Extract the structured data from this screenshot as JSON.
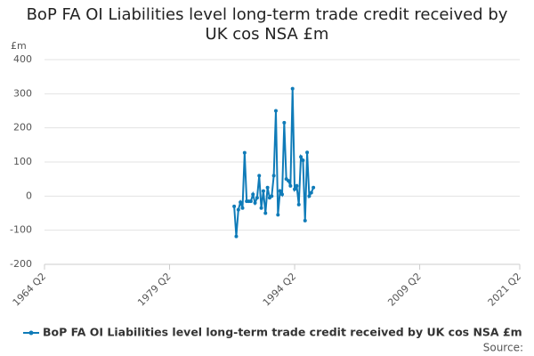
{
  "chart_data": {
    "type": "line",
    "title": "BoP FA OI Liabilities level long-term trade credit received by UK cos NSA £m",
    "y_label": "£m",
    "source": "Source:",
    "x": [
      "1987 Q1",
      "1987 Q2",
      "1987 Q3",
      "1987 Q4",
      "1988 Q1",
      "1988 Q2",
      "1988 Q3",
      "1988 Q4",
      "1989 Q1",
      "1989 Q2",
      "1989 Q3",
      "1989 Q4",
      "1990 Q1",
      "1990 Q2",
      "1990 Q3",
      "1990 Q4",
      "1991 Q1",
      "1991 Q2",
      "1991 Q3",
      "1991 Q4",
      "1992 Q1",
      "1992 Q2",
      "1992 Q3",
      "1992 Q4",
      "1993 Q1",
      "1993 Q2",
      "1993 Q3",
      "1993 Q4",
      "1994 Q1",
      "1994 Q2",
      "1994 Q3",
      "1994 Q4",
      "1995 Q1",
      "1995 Q2",
      "1995 Q3",
      "1995 Q4",
      "1996 Q1",
      "1996 Q2",
      "1996 Q3"
    ],
    "series": [
      {
        "name": "BoP FA OI Liabilities level long-term trade credit received by UK cos NSA £m",
        "color": "#0f7bb8",
        "values": [
          -30,
          -118,
          -40,
          -18,
          -35,
          127,
          -15,
          -15,
          -15,
          5,
          -20,
          -5,
          60,
          -35,
          15,
          -50,
          25,
          -5,
          0,
          60,
          250,
          -55,
          15,
          5,
          215,
          50,
          45,
          30,
          315,
          20,
          30,
          -25,
          115,
          105,
          -72,
          128,
          0,
          10,
          25
        ]
      }
    ],
    "xlim": [
      "1964 Q2",
      "2021 Q2"
    ],
    "xticks": [
      "1964 Q2",
      "1979 Q2",
      "1994 Q2",
      "2009 Q2",
      "2021 Q2"
    ],
    "ylim": [
      -200,
      400
    ],
    "yticks": [
      -200,
      -100,
      0,
      100,
      200,
      300,
      400
    ],
    "grid": true
  }
}
